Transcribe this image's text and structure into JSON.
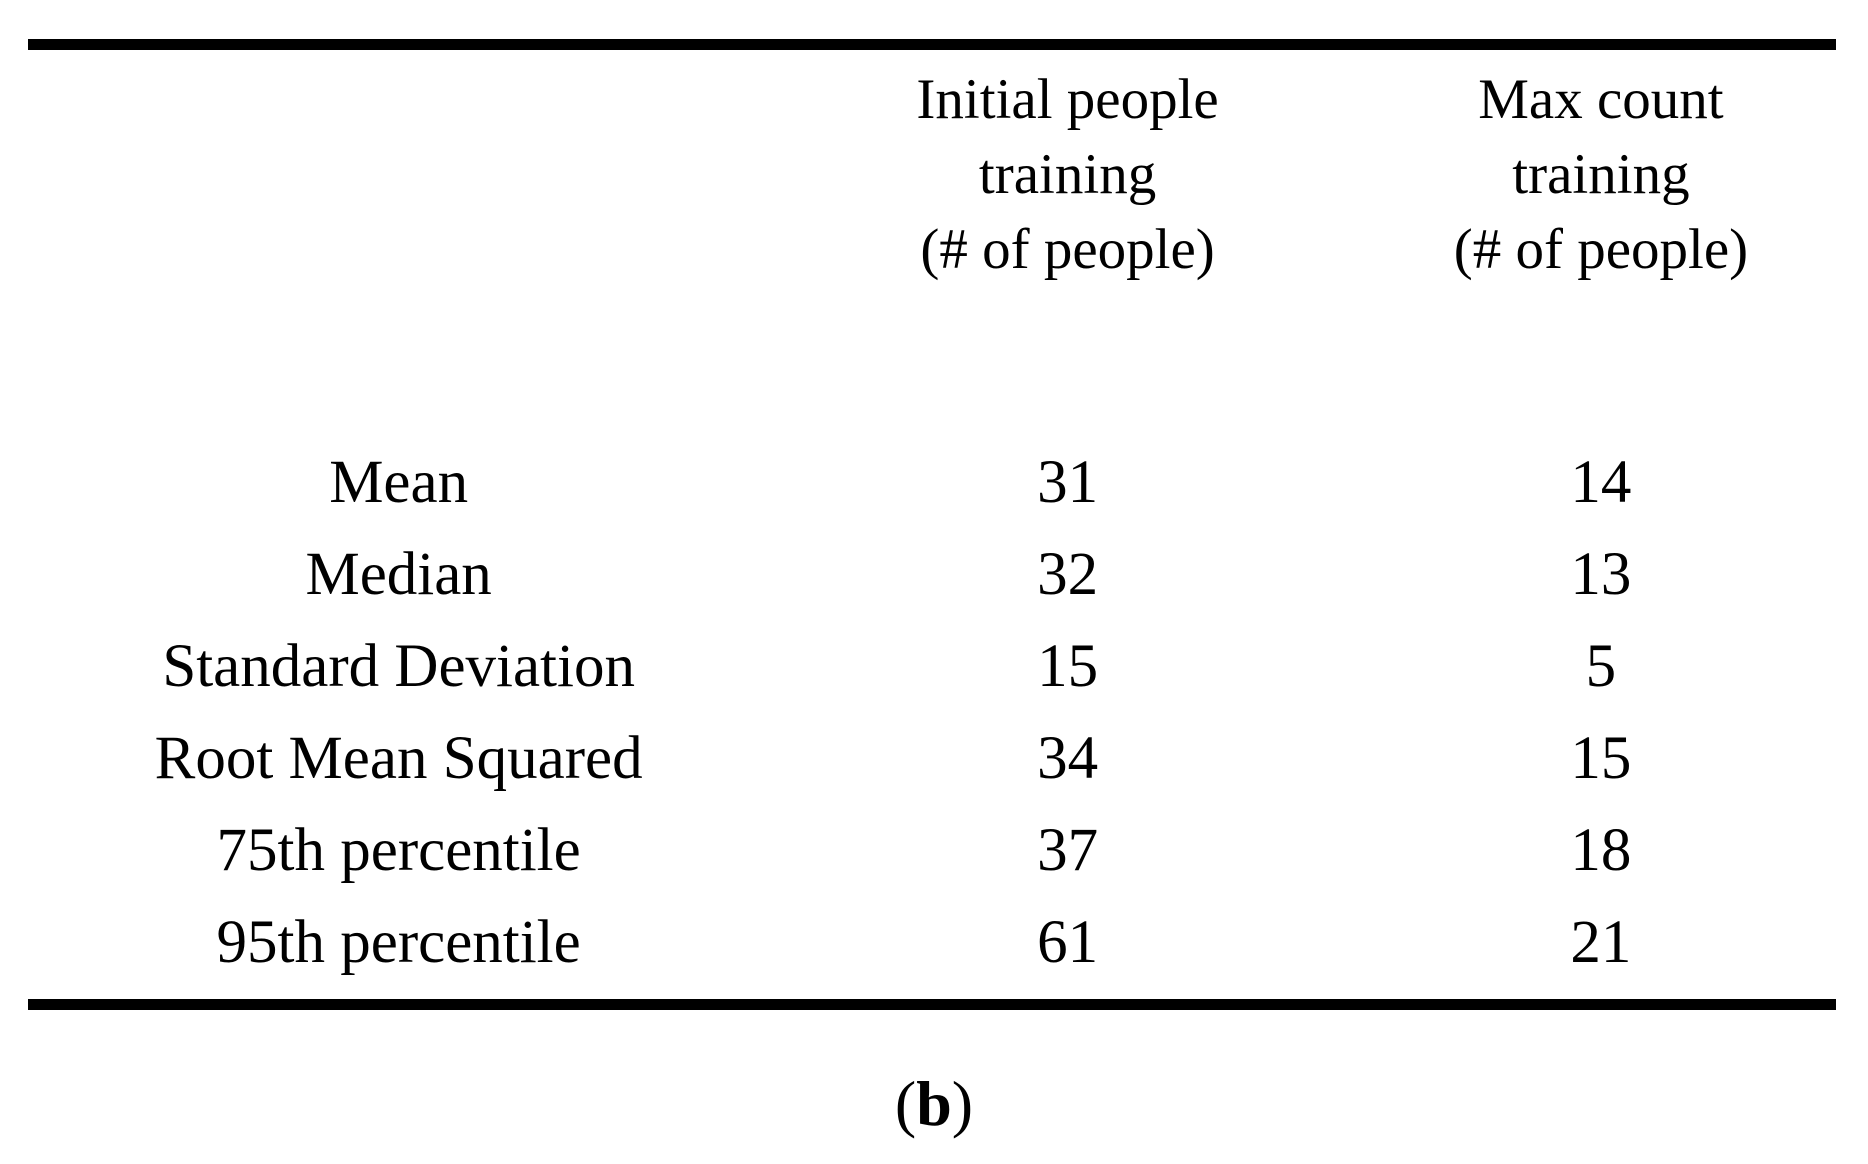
{
  "table": {
    "header": {
      "col1_lines": [
        "Initial people",
        "training",
        "(# of people)"
      ],
      "col2_lines": [
        "Max count",
        "training",
        "(# of people)"
      ]
    },
    "rows": [
      {
        "label": "Mean",
        "initial": "31",
        "max": "14"
      },
      {
        "label": "Median",
        "initial": "32",
        "max": "13"
      },
      {
        "label": "Standard Deviation",
        "initial": "15",
        "max": "5"
      },
      {
        "label": "Root Mean Squared",
        "initial": "34",
        "max": "15"
      },
      {
        "label": "75th percentile",
        "initial": "37",
        "max": "18"
      },
      {
        "label": "95th percentile",
        "initial": "61",
        "max": "21"
      }
    ]
  },
  "caption": {
    "open": "(",
    "label": "b",
    "close": ")"
  },
  "chart_data": {
    "type": "table",
    "title": "",
    "columns": [
      "",
      "Initial people training (# of people)",
      "Max count training (# of people)"
    ],
    "rows": [
      [
        "Mean",
        31,
        14
      ],
      [
        "Median",
        32,
        13
      ],
      [
        "Standard Deviation",
        15,
        5
      ],
      [
        "Root Mean Squared",
        34,
        15
      ],
      [
        "75th percentile",
        37,
        18
      ],
      [
        "95th percentile",
        61,
        21
      ]
    ],
    "layout": "top and bottom horizontal rules only, no vertical lines, all cells centered",
    "colors": {
      "text": "#000000",
      "background": "#ffffff",
      "rule": "#000000"
    }
  }
}
